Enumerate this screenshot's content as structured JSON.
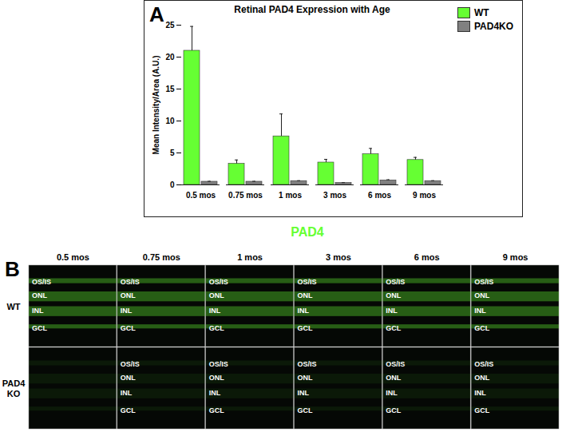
{
  "chart_data": {
    "type": "bar",
    "title": "Retinal PAD4 Expression with Age",
    "annotations": [
      "A"
    ],
    "categories": [
      "0.5 mos",
      "0.75 mos",
      "1 mos",
      "3 mos",
      "6 mos",
      "9 mos"
    ],
    "series": [
      {
        "name": "WT",
        "color": "#66ff33",
        "values": [
          21.0,
          3.3,
          7.6,
          3.5,
          4.8,
          3.9
        ],
        "error": [
          3.8,
          0.6,
          3.5,
          0.5,
          0.9,
          0.4
        ]
      },
      {
        "name": "PAD4KO",
        "color": "#808080",
        "values": [
          0.5,
          0.5,
          0.6,
          0.3,
          0.7,
          0.6
        ],
        "error": [
          0.05,
          0.05,
          0.05,
          0.05,
          0.1,
          0.05
        ]
      }
    ],
    "ylabel": "Mean Intensity/Area (A.U.)",
    "ylim": [
      0,
      25
    ],
    "yticks": [
      0,
      5,
      10,
      15,
      20,
      25
    ],
    "legend": "upper right"
  },
  "panel_b": {
    "label": "B",
    "title": "PAD4",
    "color": "#66ff33",
    "columns": [
      "0.5 mos",
      "0.75 mos",
      "1 mos",
      "3 mos",
      "6 mos",
      "9 mos"
    ],
    "rows": [
      {
        "name": "WT",
        "layers": [
          [
            "OS/IS",
            "ONL",
            "INL",
            "GCL"
          ],
          [
            "OS/IS",
            "ONL",
            "INL",
            "GCL"
          ],
          [
            "OS/IS",
            "ONL",
            "INL",
            "GCL"
          ],
          [
            "OS/IS",
            "ONL",
            "INL",
            "GCL"
          ],
          [
            "OS/IS",
            "ONL",
            "INL",
            "GCL"
          ],
          [
            "OS/IS",
            "ONL",
            "INL",
            "GCL"
          ]
        ]
      },
      {
        "name": "PAD4 KO",
        "layers": [
          [],
          [
            "OS/IS",
            "ONL",
            "INL",
            "GCL"
          ],
          [
            "OS/IS",
            "ONL",
            "INL",
            "GCL"
          ],
          [
            "OS/IS",
            "ONL",
            "INL",
            "GCL"
          ],
          [
            "OS/IS",
            "ONL",
            "INL",
            "GCL"
          ],
          [
            "OS/IS",
            "ONL",
            "INL",
            "GCL"
          ]
        ]
      }
    ]
  }
}
